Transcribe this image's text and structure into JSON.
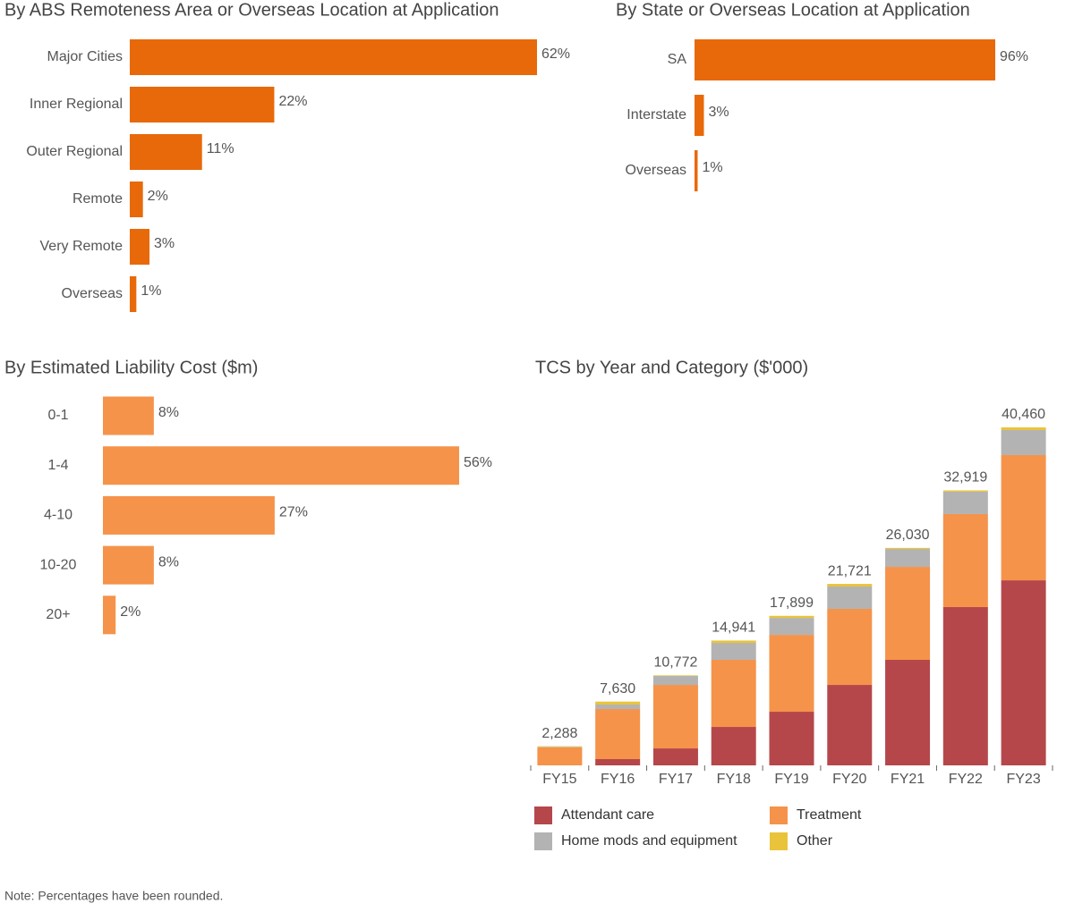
{
  "chart_data": [
    {
      "type": "bar",
      "orientation": "horizontal",
      "title": "By ABS Remoteness Area or Overseas Location at Application",
      "categories": [
        "Major Cities",
        "Inner  Regional",
        "Outer Regional",
        "Remote",
        "Very Remote",
        "Overseas"
      ],
      "values": [
        62,
        22,
        11,
        2,
        3,
        1
      ],
      "value_labels": [
        "62%",
        "22%",
        "11%",
        "2%",
        "3%",
        "1%"
      ],
      "color": "#e8690a"
    },
    {
      "type": "bar",
      "orientation": "horizontal",
      "title": "By State or Overseas Location at Application",
      "categories": [
        "SA",
        "Interstate",
        "Overseas"
      ],
      "values": [
        96,
        3,
        1
      ],
      "value_labels": [
        "96%",
        "3%",
        "1%"
      ],
      "color": "#e8690a"
    },
    {
      "type": "bar",
      "orientation": "horizontal",
      "title": "By Estimated Liability Cost ($m)",
      "categories": [
        "0-1",
        "1-4",
        "4-10",
        "10-20",
        "20+"
      ],
      "values": [
        8,
        56,
        27,
        8,
        2
      ],
      "value_labels": [
        "8%",
        "56%",
        "27%",
        "8%",
        "2%"
      ],
      "color": "#f5934a"
    },
    {
      "type": "bar",
      "stacked": true,
      "title": "TCS by Year and Category ($'000)",
      "categories": [
        "FY15",
        "FY16",
        "FY17",
        "FY18",
        "FY19",
        "FY20",
        "FY21",
        "FY22",
        "FY23"
      ],
      "series": [
        {
          "name": "Attendant care",
          "color": "#b5474b",
          "values": [
            0,
            750,
            2030,
            4600,
            6420,
            9630,
            12630,
            18950,
            22150
          ]
        },
        {
          "name": "Treatment",
          "color": "#f5934a",
          "values": [
            2150,
            5990,
            7600,
            8030,
            9200,
            9100,
            11130,
            11130,
            14990
          ]
        },
        {
          "name": "Home mods and equipment",
          "color": "#b3b3b3",
          "values": [
            60,
            540,
            1070,
            2030,
            2030,
            2680,
            2140,
            2680,
            3000
          ]
        },
        {
          "name": "Other",
          "color": "#e9c43a",
          "values": [
            78,
            350,
            72,
            281,
            249,
            311,
            130,
            159,
            320
          ]
        }
      ],
      "totals": [
        2288,
        7630,
        10772,
        14941,
        17899,
        21721,
        26030,
        32919,
        40460
      ],
      "totals_labels": [
        "2,288",
        "7,630",
        "10,772",
        "14,941",
        "17,899",
        "21,721",
        "26,030",
        "32,919",
        "40,460"
      ]
    }
  ],
  "note": "Note: Percentages have been rounded."
}
